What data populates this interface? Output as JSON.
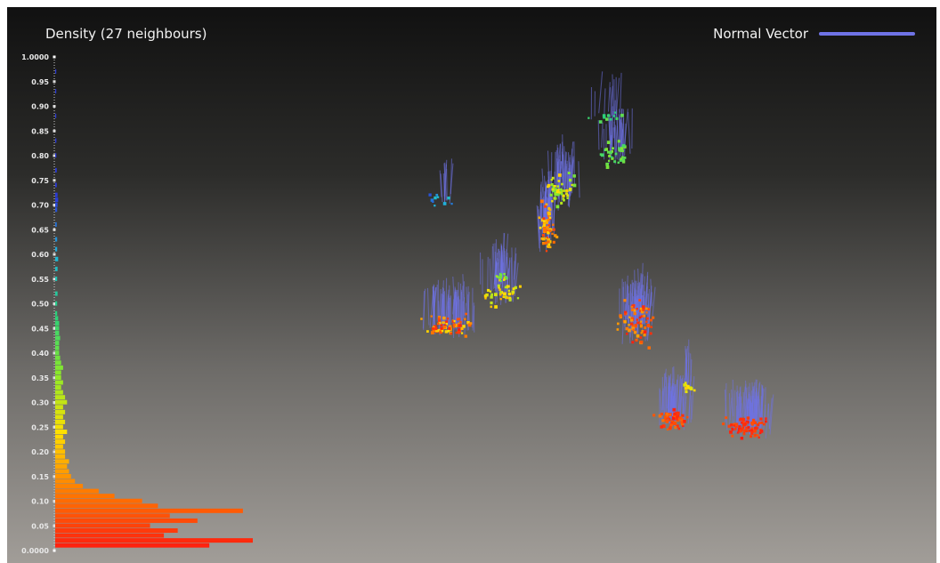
{
  "chart_data": [
    {
      "type": "bar",
      "orientation": "horizontal",
      "title": "Density (27 neighbours)",
      "ylim": [
        0,
        1
      ],
      "yticks": [
        "0.0000",
        "0.05",
        "0.10",
        "0.15",
        "0.20",
        "0.25",
        "0.30",
        "0.35",
        "0.40",
        "0.45",
        "0.50",
        "0.55",
        "0.60",
        "0.65",
        "0.70",
        "0.75",
        "0.80",
        "0.85",
        "0.90",
        "0.95",
        "1.0000"
      ],
      "colormap": [
        "#ff1a10",
        "#ff7a00",
        "#ffe000",
        "#8ce82a",
        "#2ad17a",
        "#1fb8d8",
        "#2a3ad8"
      ],
      "bins": [
        {
          "y": 0.01,
          "v": 0.78
        },
        {
          "y": 0.02,
          "v": 1.0
        },
        {
          "y": 0.03,
          "v": 0.55
        },
        {
          "y": 0.04,
          "v": 0.62
        },
        {
          "y": 0.05,
          "v": 0.48
        },
        {
          "y": 0.06,
          "v": 0.72
        },
        {
          "y": 0.07,
          "v": 0.58
        },
        {
          "y": 0.08,
          "v": 0.95
        },
        {
          "y": 0.09,
          "v": 0.52
        },
        {
          "y": 0.1,
          "v": 0.44
        },
        {
          "y": 0.11,
          "v": 0.3
        },
        {
          "y": 0.12,
          "v": 0.22
        },
        {
          "y": 0.13,
          "v": 0.14
        },
        {
          "y": 0.14,
          "v": 0.1
        },
        {
          "y": 0.15,
          "v": 0.08
        },
        {
          "y": 0.16,
          "v": 0.07
        },
        {
          "y": 0.17,
          "v": 0.06
        },
        {
          "y": 0.18,
          "v": 0.07
        },
        {
          "y": 0.19,
          "v": 0.05
        },
        {
          "y": 0.2,
          "v": 0.05
        },
        {
          "y": 0.21,
          "v": 0.04
        },
        {
          "y": 0.22,
          "v": 0.05
        },
        {
          "y": 0.23,
          "v": 0.04
        },
        {
          "y": 0.24,
          "v": 0.06
        },
        {
          "y": 0.25,
          "v": 0.04
        },
        {
          "y": 0.26,
          "v": 0.05
        },
        {
          "y": 0.27,
          "v": 0.04
        },
        {
          "y": 0.28,
          "v": 0.05
        },
        {
          "y": 0.29,
          "v": 0.04
        },
        {
          "y": 0.3,
          "v": 0.06
        },
        {
          "y": 0.31,
          "v": 0.05
        },
        {
          "y": 0.32,
          "v": 0.04
        },
        {
          "y": 0.33,
          "v": 0.03
        },
        {
          "y": 0.34,
          "v": 0.04
        },
        {
          "y": 0.35,
          "v": 0.03
        },
        {
          "y": 0.36,
          "v": 0.03
        },
        {
          "y": 0.37,
          "v": 0.04
        },
        {
          "y": 0.38,
          "v": 0.03
        },
        {
          "y": 0.39,
          "v": 0.025
        },
        {
          "y": 0.4,
          "v": 0.02
        },
        {
          "y": 0.41,
          "v": 0.02
        },
        {
          "y": 0.42,
          "v": 0.02
        },
        {
          "y": 0.43,
          "v": 0.025
        },
        {
          "y": 0.44,
          "v": 0.02
        },
        {
          "y": 0.45,
          "v": 0.02
        },
        {
          "y": 0.46,
          "v": 0.02
        },
        {
          "y": 0.47,
          "v": 0.015
        },
        {
          "y": 0.48,
          "v": 0.01
        },
        {
          "y": 0.5,
          "v": 0.01
        },
        {
          "y": 0.52,
          "v": 0.012
        },
        {
          "y": 0.55,
          "v": 0.01
        },
        {
          "y": 0.57,
          "v": 0.012
        },
        {
          "y": 0.59,
          "v": 0.015
        },
        {
          "y": 0.61,
          "v": 0.01
        },
        {
          "y": 0.63,
          "v": 0.01
        },
        {
          "y": 0.66,
          "v": 0.008
        },
        {
          "y": 0.69,
          "v": 0.01
        },
        {
          "y": 0.7,
          "v": 0.012
        },
        {
          "y": 0.71,
          "v": 0.015
        },
        {
          "y": 0.72,
          "v": 0.012
        },
        {
          "y": 0.74,
          "v": 0.008
        },
        {
          "y": 0.77,
          "v": 0.008
        },
        {
          "y": 0.8,
          "v": 0.006
        },
        {
          "y": 0.83,
          "v": 0.006
        },
        {
          "y": 0.88,
          "v": 0.005
        },
        {
          "y": 0.93,
          "v": 0.005
        },
        {
          "y": 0.97,
          "v": 0.004
        }
      ]
    },
    {
      "type": "scatter",
      "legend": {
        "label": "Normal Vector",
        "color": "#6f73e6",
        "position": "top-right"
      },
      "colorscale": [
        "#ff1a10",
        "#ff7a00",
        "#ffe000",
        "#8ce82a",
        "#2ad17a",
        "#1fb8d8",
        "#2a3ad8"
      ],
      "clusters": [
        {
          "cx": 0.1,
          "cy": 0.58,
          "sx": 0.08,
          "sy": 0.04,
          "n": 70,
          "c0": 0.0,
          "c1": 0.35
        },
        {
          "cx": 0.24,
          "cy": 0.49,
          "sx": 0.07,
          "sy": 0.05,
          "n": 40,
          "c0": 0.25,
          "c1": 0.45
        },
        {
          "cx": 0.36,
          "cy": 0.32,
          "sx": 0.03,
          "sy": 0.1,
          "n": 60,
          "c0": 0.05,
          "c1": 0.35
        },
        {
          "cx": 0.4,
          "cy": 0.22,
          "sx": 0.06,
          "sy": 0.06,
          "n": 50,
          "c0": 0.3,
          "c1": 0.55
        },
        {
          "cx": 0.55,
          "cy": 0.12,
          "sx": 0.06,
          "sy": 0.05,
          "n": 35,
          "c0": 0.5,
          "c1": 0.65
        },
        {
          "cx": 0.6,
          "cy": 0.57,
          "sx": 0.06,
          "sy": 0.08,
          "n": 80,
          "c0": 0.0,
          "c1": 0.25
        },
        {
          "cx": 0.7,
          "cy": 0.83,
          "sx": 0.06,
          "sy": 0.04,
          "n": 60,
          "c0": 0.0,
          "c1": 0.15
        },
        {
          "cx": 0.9,
          "cy": 0.85,
          "sx": 0.08,
          "sy": 0.04,
          "n": 80,
          "c0": 0.0,
          "c1": 0.1
        },
        {
          "cx": 0.52,
          "cy": 0.02,
          "sx": 0.06,
          "sy": 0.02,
          "n": 12,
          "c0": 0.55,
          "c1": 0.7
        },
        {
          "cx": 0.08,
          "cy": 0.24,
          "sx": 0.04,
          "sy": 0.03,
          "n": 10,
          "c0": 0.8,
          "c1": 1.0
        },
        {
          "cx": 0.24,
          "cy": 0.45,
          "sx": 0.02,
          "sy": 0.02,
          "n": 12,
          "c0": 0.45,
          "c1": 0.6
        },
        {
          "cx": 0.74,
          "cy": 0.74,
          "sx": 0.02,
          "sy": 0.02,
          "n": 10,
          "c0": 0.3,
          "c1": 0.4
        }
      ]
    }
  ]
}
